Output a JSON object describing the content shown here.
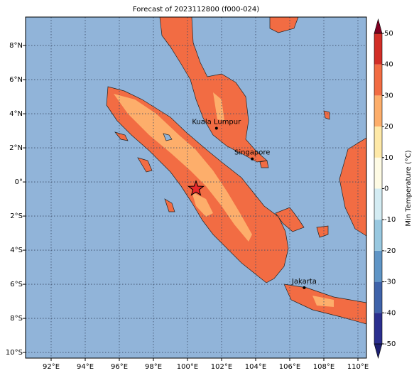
{
  "title": "Forecast of 2023112800 (f000-024)",
  "map": {
    "xlim": [
      90.5,
      110.5
    ],
    "ylim": [
      -10.33,
      9.67
    ],
    "xticks": [
      {
        "value": 92,
        "label": "92°E"
      },
      {
        "value": 94,
        "label": "94°E"
      },
      {
        "value": 96,
        "label": "96°E"
      },
      {
        "value": 98,
        "label": "98°E"
      },
      {
        "value": 100,
        "label": "100°E"
      },
      {
        "value": 102,
        "label": "102°E"
      },
      {
        "value": 104,
        "label": "104°E"
      },
      {
        "value": 106,
        "label": "106°E"
      },
      {
        "value": 108,
        "label": "108°E"
      },
      {
        "value": 110,
        "label": "110°E"
      }
    ],
    "yticks": [
      {
        "value": -10,
        "label": "10°S"
      },
      {
        "value": -8,
        "label": "8°S"
      },
      {
        "value": -6,
        "label": "6°S"
      },
      {
        "value": -4,
        "label": "4°S"
      },
      {
        "value": -2,
        "label": "2°S"
      },
      {
        "value": 0,
        "label": "0°"
      },
      {
        "value": 2,
        "label": "2°N"
      },
      {
        "value": 4,
        "label": "4°N"
      },
      {
        "value": 6,
        "label": "6°N"
      },
      {
        "value": 8,
        "label": "8°N"
      }
    ],
    "grid": true,
    "cities": [
      {
        "name": "Kuala Lumpur",
        "lon": 101.7,
        "lat": 3.15
      },
      {
        "name": "Singapore",
        "lon": 103.8,
        "lat": 1.35
      },
      {
        "name": "Jakarta",
        "lon": 106.85,
        "lat": -6.2
      }
    ],
    "marker": {
      "lon": 100.5,
      "lat": -0.4,
      "color": "#e8282a"
    }
  },
  "colorbar": {
    "label": "Min Temperature (°C)",
    "lim": [
      -50,
      50
    ],
    "ticks": [
      -50,
      -40,
      -30,
      -20,
      -10,
      0,
      10,
      20,
      30,
      40,
      50
    ],
    "colors": [
      "#2b2f8f",
      "#3f63aa",
      "#5f95c6",
      "#98c8e0",
      "#d4ecf3",
      "#fefbe4",
      "#fee9a8",
      "#fdae6b",
      "#f26c43",
      "#d22e27",
      "#a10026"
    ],
    "extend_colors": [
      "#1d1f70",
      "#800021"
    ]
  }
}
